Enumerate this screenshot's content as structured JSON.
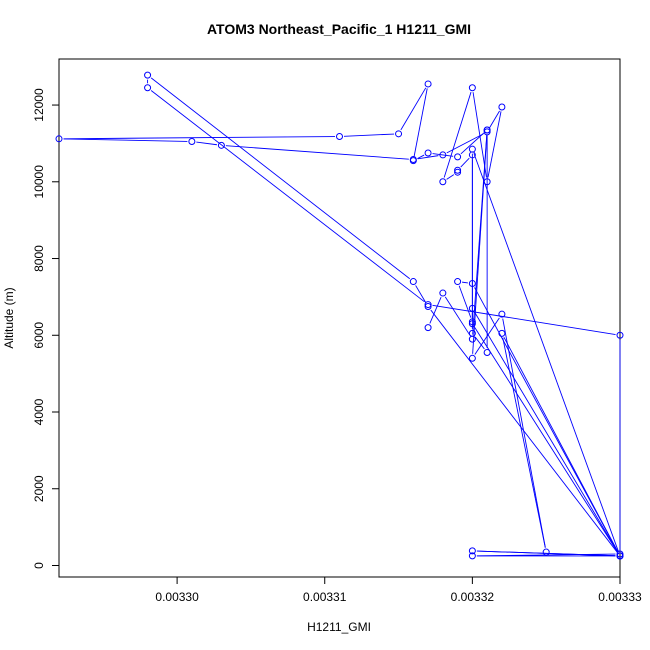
{
  "chart_data": {
    "type": "scatter",
    "title": "ATOM3 Northeast_Pacific_1 H1211_GMI",
    "xlabel": "H1211_GMI",
    "ylabel": "Altitude (m)",
    "xlim": [
      0.003292,
      0.00333
    ],
    "ylim": [
      -300,
      13200
    ],
    "x_ticks": [
      0.0033,
      0.00331,
      0.00332,
      0.00333
    ],
    "x_tick_labels": [
      "0.00330",
      "0.00331",
      "0.00332",
      "0.00333"
    ],
    "y_ticks": [
      0,
      2000,
      4000,
      6000,
      8000,
      10000,
      12000
    ],
    "y_tick_labels": [
      "0",
      "2000",
      "4000",
      "6000",
      "8000",
      "10000",
      "12000"
    ],
    "grid": false,
    "legend": "none",
    "color": "#0000ff",
    "series": [
      {
        "x": [
          0.00333,
          0.00333,
          0.00332,
          0.00333,
          0.00332,
          0.00333,
          0.00333,
          0.00332,
          0.00332,
          0.00333,
          0.00333,
          0.003317,
          0.003298,
          0.003298,
          0.003316,
          0.003317,
          0.00333,
          0.00332,
          0.003319,
          0.00332,
          0.00332,
          0.00333,
          0.003322,
          0.003325,
          0.003322,
          0.00332,
          0.003321,
          0.003319,
          0.003317,
          0.003316,
          0.003317,
          0.003315,
          0.003311,
          0.003292,
          0.003301,
          0.003303,
          0.003316,
          0.003318,
          0.003321,
          0.003322,
          0.003321,
          0.00332,
          0.003318,
          0.003319,
          0.003319,
          0.00332,
          0.00332,
          0.003321,
          0.003321,
          0.00332,
          0.003318,
          0.003317
        ],
        "y": [
          250,
          300,
          250,
          250,
          380,
          250,
          250,
          6300,
          6700,
          250,
          6000,
          6800,
          12450,
          12780,
          7400,
          6750,
          250,
          7350,
          7400,
          6350,
          10850,
          250,
          6050,
          350,
          6550,
          5400,
          11350,
          10650,
          10750,
          10550,
          12550,
          11250,
          11180,
          11120,
          11050,
          10950,
          10580,
          10700,
          11300,
          11950,
          10000,
          12450,
          10000,
          10250,
          10300,
          10700,
          6050,
          5550,
          11350,
          5900,
          7100,
          6200
        ]
      }
    ]
  }
}
